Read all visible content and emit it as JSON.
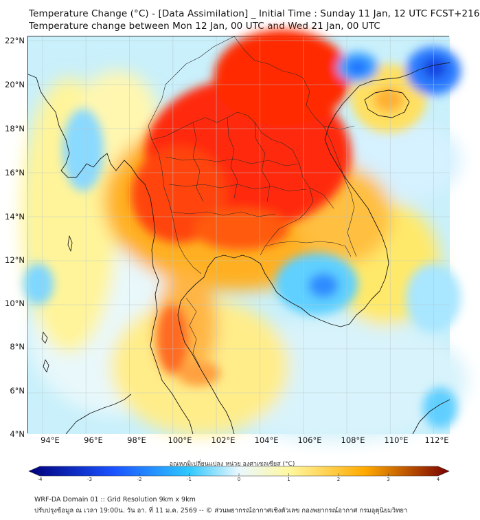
{
  "header": {
    "title_line1": "Temperature Change (°C) - [Data Assimilation] _ Initial Time : Sunday 11 Jan, 12 UTC FCST+216",
    "title_line2": "Temperature change between Mon 12 Jan, 00 UTC and Wed 21 Jan, 00 UTC"
  },
  "map": {
    "y_axis_labels": [
      "22°N",
      "20°N",
      "18°N",
      "16°N",
      "14°N",
      "12°N",
      "10°N",
      "8°N",
      "6°N",
      "4°N"
    ],
    "x_axis_labels": [
      "94°E",
      "96°E",
      "98°E",
      "100°E",
      "102°E",
      "104°E",
      "106°E",
      "108°E",
      "110°E",
      "112°E"
    ],
    "lat_range": [
      4,
      22.1
    ],
    "lon_range": [
      93,
      112.4
    ],
    "field": "temperature change",
    "units": "°C"
  },
  "colorbar": {
    "title": "อุณหภูมิเปลี่ยนแปลง หน่วย องศาเซลเซียส (°C)",
    "ticks": [
      "-4",
      "-3",
      "-2",
      "-1",
      "0",
      "1",
      "2",
      "3",
      "4"
    ],
    "range": [
      -4,
      4
    ],
    "colors": {
      "min": "#00007a",
      "neg_mid": "#1a52ff",
      "neg_light": "#2ec7ff",
      "zero": "#eaf8ff",
      "pos_light": "#fff8a0",
      "pos_mid": "#ffaa00",
      "max": "#7a0000"
    }
  },
  "footer": {
    "line1": "WRF-DA Domain 01 :: Grid Resolution 9km x 9km",
    "line2": "ปรับปรุงข้อมูล ณ เวลา 19:00น. วัน อา. ที่ 11 ม.ค. 2569 -- © ส่วนพยากรณ์อากาศเชิงตัวเลข กองพยากรณ์อากาศ กรมอุตุนิยมวิทยา"
  }
}
